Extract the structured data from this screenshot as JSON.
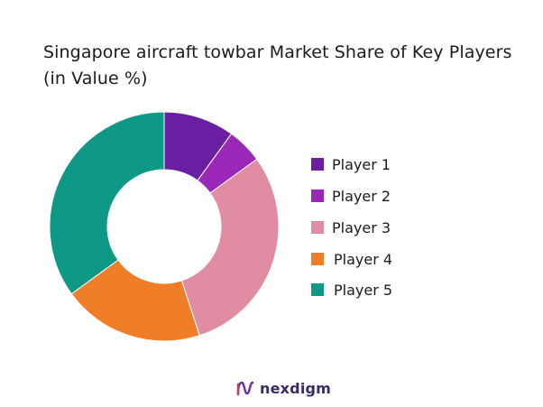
{
  "chart_data": {
    "type": "pie",
    "title": "Singapore aircraft towbar Market Share of Key Players (in Value %)",
    "categories": [
      "Player 1",
      "Player 2",
      "Player 3",
      "Player 4",
      "Player 5"
    ],
    "values": [
      10,
      5,
      30,
      20,
      35
    ],
    "colors": [
      "#6a1fa3",
      "#9b27b8",
      "#e08ca3",
      "#f07e28",
      "#0e9986"
    ],
    "donut": true,
    "legend_position": "right"
  },
  "brand": {
    "name": "nexdigm",
    "logo_icon": "nexdigm-logo-icon",
    "color": "#3b2a6b"
  }
}
